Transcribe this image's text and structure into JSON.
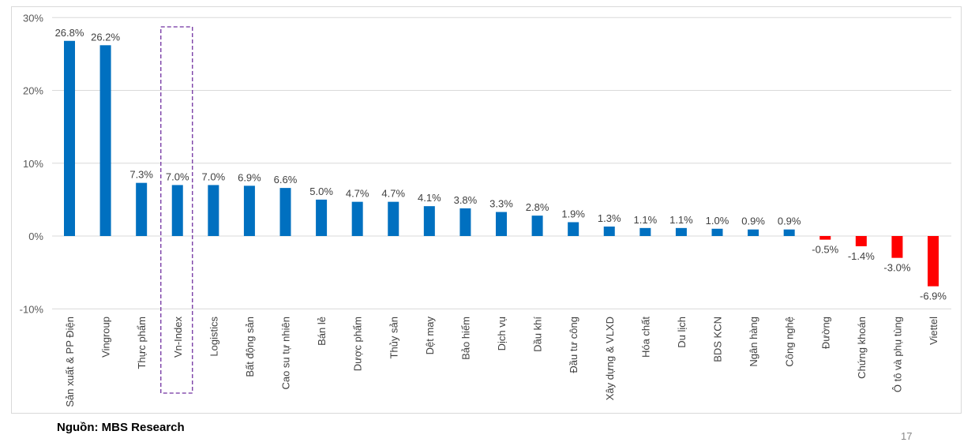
{
  "chart_data": {
    "type": "bar",
    "title": "",
    "xlabel": "",
    "ylabel": "",
    "ylim": [
      -10,
      30
    ],
    "yticks": [
      "-10%",
      "0%",
      "10%",
      "20%",
      "30%"
    ],
    "ytick_values": [
      -10,
      0,
      10,
      20,
      30
    ],
    "grid": true,
    "categories": [
      "Sản xuất & PP Điện",
      "Vingroup",
      "Thực phẩm",
      "Vn-Index",
      "Logistics",
      "Bất động sản",
      "Cao su tự nhiên",
      "Bán lẻ",
      "Dược phẩm",
      "Thủy sản",
      "Dệt may",
      "Bảo hiểm",
      "Dịch vụ",
      "Dầu khí",
      "Đầu tư công",
      "Xây dựng & VLXD",
      "Hóa chất",
      "Du lịch",
      "BDS KCN",
      "Ngân hàng",
      "Công nghệ",
      "Đường",
      "Chứng khoán",
      "Ô tô và phụ tùng",
      "Viettel"
    ],
    "values": [
      26.8,
      26.2,
      7.3,
      7.0,
      7.0,
      6.9,
      6.6,
      5.0,
      4.7,
      4.7,
      4.1,
      3.8,
      3.3,
      2.8,
      1.9,
      1.3,
      1.1,
      1.1,
      1.0,
      0.9,
      0.9,
      -0.5,
      -1.4,
      -3.0,
      -6.9
    ],
    "data_labels": [
      "26.8%",
      "26.2%",
      "7.3%",
      "7.0%",
      "7.0%",
      "6.9%",
      "6.6%",
      "5.0%",
      "4.7%",
      "4.7%",
      "4.1%",
      "3.8%",
      "3.3%",
      "2.8%",
      "1.9%",
      "1.3%",
      "1.1%",
      "1.1%",
      "1.0%",
      "0.9%",
      "0.9%",
      "-0.5%",
      "-1.4%",
      "-3.0%",
      "-6.9%"
    ],
    "highlighted_category": "Vn-Index",
    "colors": {
      "positive": "#0070c0",
      "negative": "#ff0000",
      "highlight_box": "#7030a0"
    }
  },
  "footer": {
    "source": "Nguồn: MBS Research",
    "page_number": "17"
  }
}
